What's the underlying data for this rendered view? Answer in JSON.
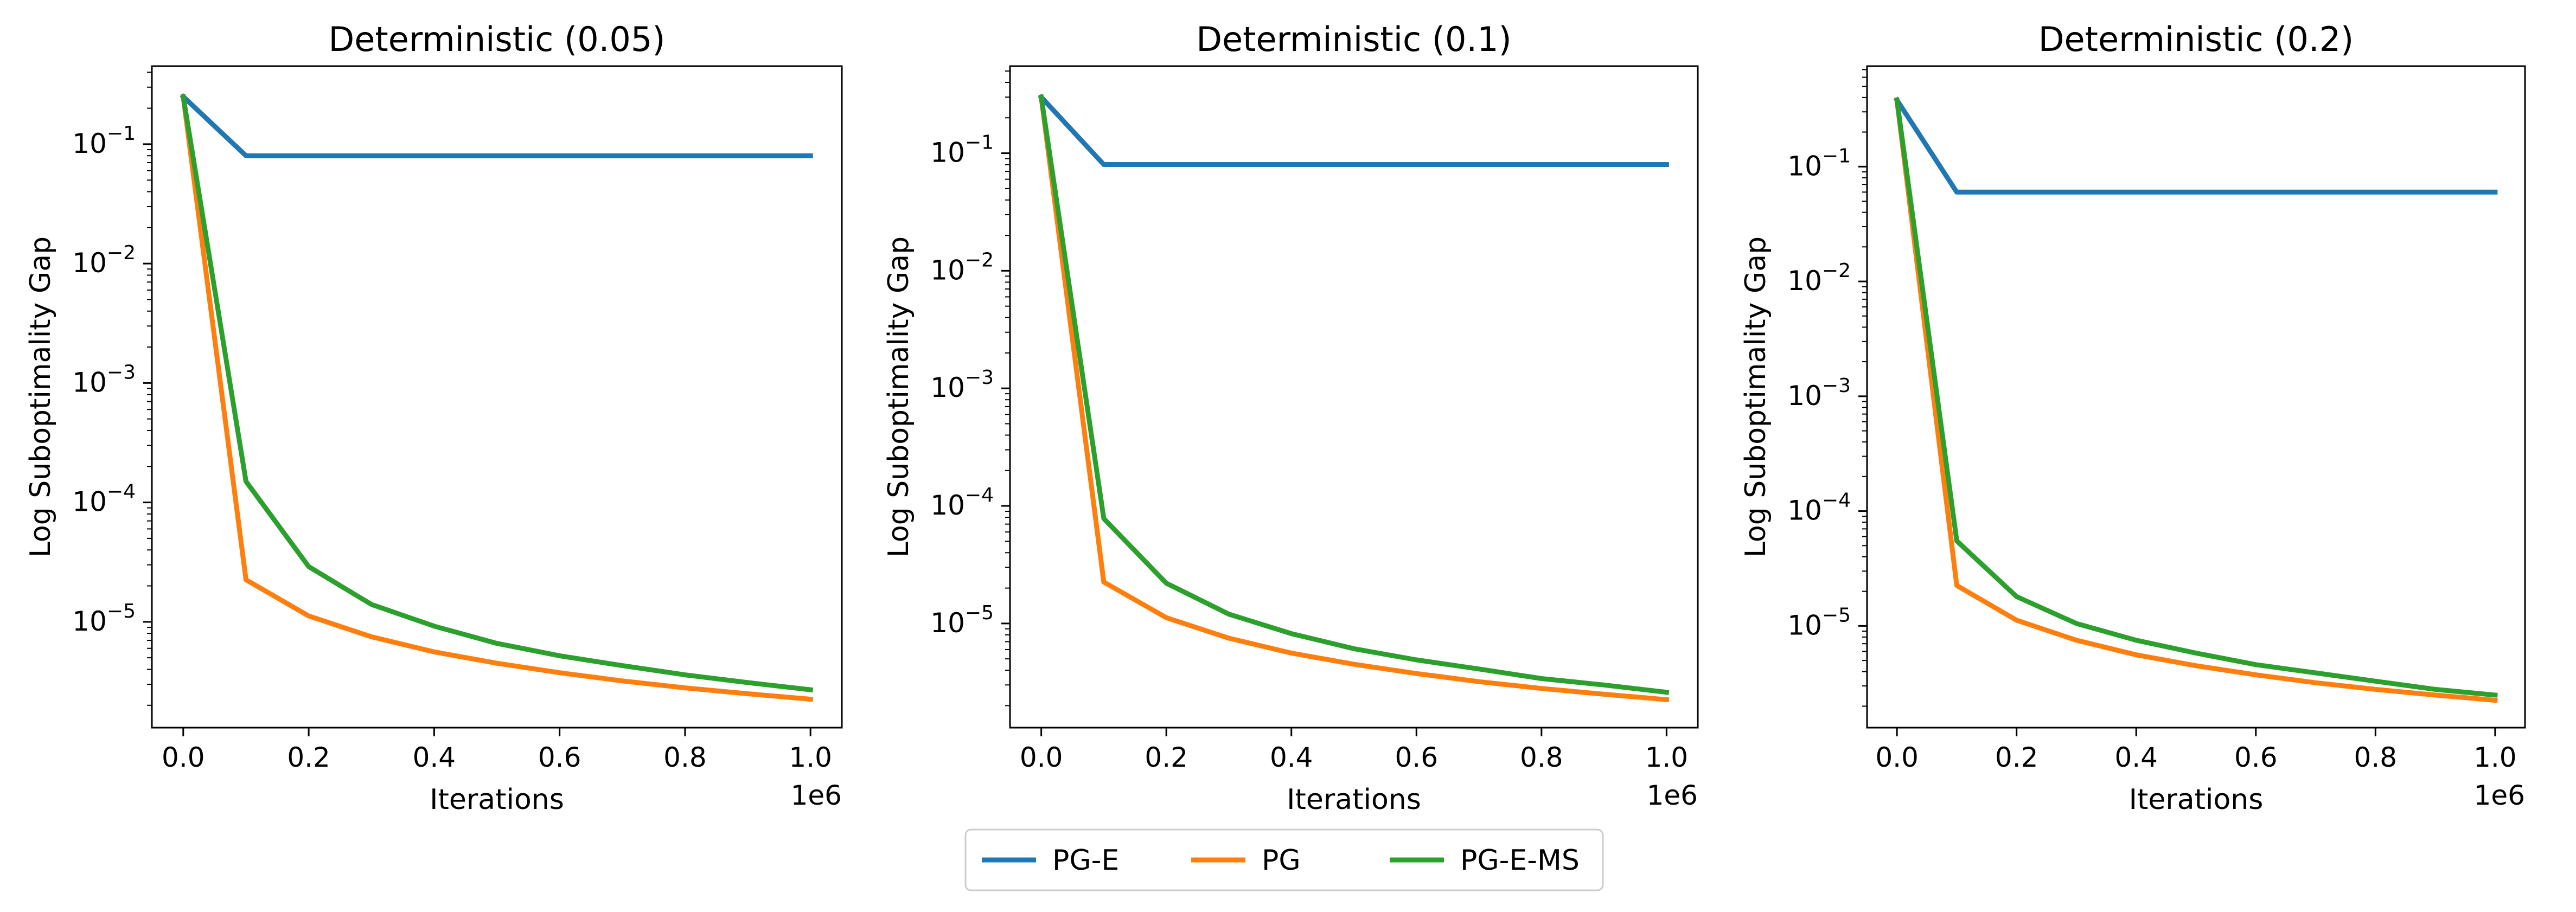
{
  "chart_data": [
    {
      "type": "line",
      "title": "Deterministic (0.05)",
      "xlabel": "Iterations",
      "ylabel": "Log Suboptimality Gap",
      "x_offset_label": "1e6",
      "yscale": "log",
      "xlim": [
        -0.05,
        1.05
      ],
      "ylim": [
        1.3e-06,
        0.45
      ],
      "x_ticks": [
        0.0,
        0.2,
        0.4,
        0.6,
        0.8,
        1.0
      ],
      "x_tick_labels": [
        "0.0",
        "0.2",
        "0.4",
        "0.6",
        "0.8",
        "1.0"
      ],
      "y_ticks": [
        1e-05,
        0.0001,
        0.001,
        0.01,
        0.1
      ],
      "y_tick_labels": [
        {
          "base": "10",
          "exp": "−5"
        },
        {
          "base": "10",
          "exp": "−4"
        },
        {
          "base": "10",
          "exp": "−3"
        },
        {
          "base": "10",
          "exp": "−2"
        },
        {
          "base": "10",
          "exp": "−1"
        }
      ],
      "x": [
        0.0,
        0.1,
        0.2,
        0.3,
        0.4,
        0.5,
        0.6,
        0.7,
        0.8,
        0.9,
        1.0
      ],
      "series": [
        {
          "name": "PG-E",
          "color": "#1f77b4",
          "values": [
            0.25,
            0.08,
            0.08,
            0.08,
            0.08,
            0.08,
            0.08,
            0.08,
            0.08,
            0.08,
            0.08
          ]
        },
        {
          "name": "PG",
          "color": "#ff7f0e",
          "values": [
            0.25,
            2.25e-05,
            1.12e-05,
            7.5e-06,
            5.6e-06,
            4.5e-06,
            3.75e-06,
            3.2e-06,
            2.8e-06,
            2.5e-06,
            2.25e-06
          ]
        },
        {
          "name": "PG-E-MS",
          "color": "#2ca02c",
          "values": [
            0.25,
            0.00015,
            2.9e-05,
            1.4e-05,
            9.2e-06,
            6.6e-06,
            5.2e-06,
            4.3e-06,
            3.6e-06,
            3.1e-06,
            2.7e-06
          ]
        }
      ],
      "grid": false
    },
    {
      "type": "line",
      "title": "Deterministic (0.1)",
      "xlabel": "Iterations",
      "ylabel": "Log Suboptimality Gap",
      "x_offset_label": "1e6",
      "yscale": "log",
      "xlim": [
        -0.05,
        1.05
      ],
      "ylim": [
        1.3e-06,
        0.55
      ],
      "x_ticks": [
        0.0,
        0.2,
        0.4,
        0.6,
        0.8,
        1.0
      ],
      "x_tick_labels": [
        "0.0",
        "0.2",
        "0.4",
        "0.6",
        "0.8",
        "1.0"
      ],
      "y_ticks": [
        1e-05,
        0.0001,
        0.001,
        0.01,
        0.1
      ],
      "y_tick_labels": [
        {
          "base": "10",
          "exp": "−5"
        },
        {
          "base": "10",
          "exp": "−4"
        },
        {
          "base": "10",
          "exp": "−3"
        },
        {
          "base": "10",
          "exp": "−2"
        },
        {
          "base": "10",
          "exp": "−1"
        }
      ],
      "x": [
        0.0,
        0.1,
        0.2,
        0.3,
        0.4,
        0.5,
        0.6,
        0.7,
        0.8,
        0.9,
        1.0
      ],
      "series": [
        {
          "name": "PG-E",
          "color": "#1f77b4",
          "values": [
            0.3,
            0.08,
            0.08,
            0.08,
            0.08,
            0.08,
            0.08,
            0.08,
            0.08,
            0.08,
            0.08
          ]
        },
        {
          "name": "PG",
          "color": "#ff7f0e",
          "values": [
            0.3,
            2.25e-05,
            1.12e-05,
            7.5e-06,
            5.6e-06,
            4.5e-06,
            3.75e-06,
            3.2e-06,
            2.8e-06,
            2.5e-06,
            2.25e-06
          ]
        },
        {
          "name": "PG-E-MS",
          "color": "#2ca02c",
          "values": [
            0.3,
            7.8e-05,
            2.2e-05,
            1.2e-05,
            8.2e-06,
            6.1e-06,
            4.9e-06,
            4.1e-06,
            3.4e-06,
            3e-06,
            2.6e-06
          ]
        }
      ],
      "grid": false
    },
    {
      "type": "line",
      "title": "Deterministic (0.2)",
      "xlabel": "Iterations",
      "ylabel": "Log Suboptimality Gap",
      "x_offset_label": "1e6",
      "yscale": "log",
      "xlim": [
        -0.05,
        1.05
      ],
      "ylim": [
        1.3e-06,
        0.75
      ],
      "x_ticks": [
        0.0,
        0.2,
        0.4,
        0.6,
        0.8,
        1.0
      ],
      "x_tick_labels": [
        "0.0",
        "0.2",
        "0.4",
        "0.6",
        "0.8",
        "1.0"
      ],
      "y_ticks": [
        1e-05,
        0.0001,
        0.001,
        0.01,
        0.1
      ],
      "y_tick_labels": [
        {
          "base": "10",
          "exp": "−5"
        },
        {
          "base": "10",
          "exp": "−4"
        },
        {
          "base": "10",
          "exp": "−3"
        },
        {
          "base": "10",
          "exp": "−2"
        },
        {
          "base": "10",
          "exp": "−1"
        }
      ],
      "x": [
        0.0,
        0.1,
        0.2,
        0.3,
        0.4,
        0.5,
        0.6,
        0.7,
        0.8,
        0.9,
        1.0
      ],
      "series": [
        {
          "name": "PG-E",
          "color": "#1f77b4",
          "values": [
            0.38,
            0.06,
            0.06,
            0.06,
            0.06,
            0.06,
            0.06,
            0.06,
            0.06,
            0.06,
            0.06
          ]
        },
        {
          "name": "PG",
          "color": "#ff7f0e",
          "values": [
            0.38,
            2.25e-05,
            1.12e-05,
            7.5e-06,
            5.6e-06,
            4.5e-06,
            3.75e-06,
            3.2e-06,
            2.8e-06,
            2.5e-06,
            2.25e-06
          ]
        },
        {
          "name": "PG-E-MS",
          "color": "#2ca02c",
          "values": [
            0.38,
            5.5e-05,
            1.8e-05,
            1.05e-05,
            7.5e-06,
            5.8e-06,
            4.6e-06,
            3.9e-06,
            3.3e-06,
            2.8e-06,
            2.5e-06
          ]
        }
      ],
      "grid": false
    }
  ],
  "legend": {
    "placement": "bottom-center",
    "entries": [
      {
        "label": "PG-E",
        "color": "#1f77b4"
      },
      {
        "label": "PG",
        "color": "#ff7f0e"
      },
      {
        "label": "PG-E-MS",
        "color": "#2ca02c"
      }
    ]
  }
}
